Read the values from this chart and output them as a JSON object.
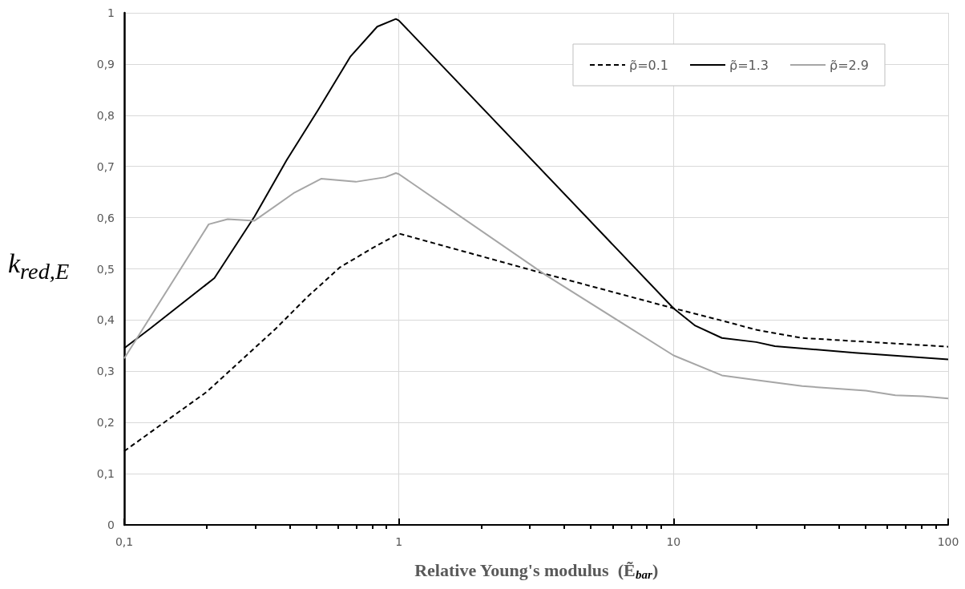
{
  "chart_data": {
    "type": "line",
    "xlabel": "Relative Young's modulus  (Ẽ$_{bar}$)",
    "ylabel": "k$_{red,E}$",
    "log": "x",
    "xlim": [
      0.1,
      100
    ],
    "ylim": [
      0,
      1
    ],
    "xticks": [
      {
        "value": 0.1,
        "label": "0,1"
      },
      {
        "value": 0.2,
        "label": null
      },
      {
        "value": 0.3,
        "label": null
      },
      {
        "value": 0.4,
        "label": null
      },
      {
        "value": 0.5,
        "label": null
      },
      {
        "value": 0.6,
        "label": null
      },
      {
        "value": 0.7,
        "label": null
      },
      {
        "value": 0.8,
        "label": null
      },
      {
        "value": 0.9,
        "label": null
      },
      1,
      {
        "value": 2,
        "label": null
      },
      {
        "value": 3,
        "label": null
      },
      {
        "value": 4,
        "label": null
      },
      {
        "value": 5,
        "label": null
      },
      {
        "value": 6,
        "label": null
      },
      {
        "value": 7,
        "label": null
      },
      {
        "value": 8,
        "label": null
      },
      {
        "value": 9,
        "label": null
      },
      10,
      {
        "value": 20,
        "label": null
      },
      {
        "value": 30,
        "label": null
      },
      {
        "value": 40,
        "label": null
      },
      {
        "value": 50,
        "label": null
      },
      {
        "value": 60,
        "label": null
      },
      {
        "value": 70,
        "label": null
      },
      {
        "value": 80,
        "label": null
      },
      {
        "value": 90,
        "label": null
      },
      100
    ],
    "yticks": [
      0,
      {
        "value": 0.1,
        "label": "0,1"
      },
      {
        "value": 0.2,
        "label": "0,2"
      },
      {
        "value": 0.3,
        "label": "0,3"
      },
      {
        "value": 0.4,
        "label": "0,4"
      },
      {
        "value": 0.5,
        "label": "0,5"
      },
      {
        "value": 0.6,
        "label": "0,6"
      },
      {
        "value": 0.7,
        "label": "0,7"
      },
      {
        "value": 0.8,
        "label": "0,8"
      },
      {
        "value": 0.9,
        "label": "0,9"
      },
      1
    ],
    "grid": true,
    "legend": "top right",
    "marker": "none",
    "series": [
      {
        "name": "ρ̃=0.1",
        "color": "#000000",
        "line_style": "dashed",
        "x": [
          0.1,
          0.2,
          0.356,
          0.466,
          0.61,
          0.798,
          1,
          3.42,
          10,
          15,
          20,
          29.4,
          100
        ],
        "values": [
          0.144,
          0.26,
          0.383,
          0.446,
          0.503,
          0.54,
          0.569,
          0.49,
          0.423,
          0.399,
          0.381,
          0.365,
          0.348
        ]
      },
      {
        "name": "ρ̃=1.3",
        "color": "#000000",
        "line_style": "solid",
        "x": [
          0.1,
          0.124,
          0.213,
          0.298,
          0.39,
          0.509,
          0.667,
          0.834,
          0.975,
          1,
          10,
          12,
          15,
          20,
          23.4,
          45.7,
          100
        ],
        "values": [
          0.345,
          0.383,
          0.482,
          0.602,
          0.712,
          0.811,
          0.915,
          0.973,
          0.988,
          0.985,
          0.423,
          0.389,
          0.365,
          0.357,
          0.349,
          0.336,
          0.323
        ]
      },
      {
        "name": "ρ̃=2.9",
        "color": "#a6a6a6",
        "line_style": "solid",
        "x": [
          0.1,
          0.203,
          0.238,
          0.298,
          0.417,
          0.521,
          0.697,
          0.892,
          0.975,
          1,
          3.42,
          10,
          15,
          20,
          29.4,
          50.2,
          64.2,
          81,
          100
        ],
        "values": [
          0.325,
          0.587,
          0.597,
          0.594,
          0.649,
          0.676,
          0.67,
          0.679,
          0.687,
          0.685,
          0.488,
          0.331,
          0.292,
          0.283,
          0.271,
          0.262,
          0.253,
          0.251,
          0.247
        ]
      }
    ]
  }
}
